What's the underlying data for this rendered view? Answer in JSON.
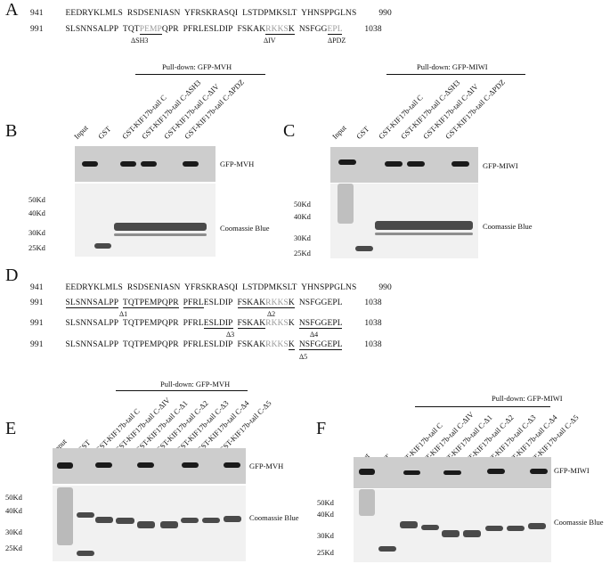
{
  "panels": {
    "A": {
      "label": "A",
      "row1": {
        "start": "941",
        "seq": [
          "EEDRYKLMLS",
          "RSDSENIASN",
          "YFRSKRASQI",
          "LSTDPMKSLT",
          "YHNSPPGLNS"
        ],
        "end": "990"
      },
      "row2": {
        "start": "991",
        "seq": [
          "SLSNNSALPP",
          "TQT",
          "PEMP",
          "QPR",
          "PFRLESLDIP",
          "FSKAK",
          "RKKS",
          "K",
          "NSFGG",
          "EPL"
        ],
        "end": "1038"
      },
      "marks": [
        "ΔSH3",
        "ΔIV",
        "ΔPDZ"
      ]
    },
    "B": {
      "label": "B",
      "pulldown": "Pull-down: GFP-MVH",
      "lanes": [
        "Input",
        "GST",
        "GST-KIF17b-tail C",
        "GST-KIF17b-tail C-ΔSH3",
        "GST-KIF17b-tail C-ΔIV",
        "GST-KIF17b-tail C-ΔPDZ"
      ],
      "wb_label": "GFP-MVH",
      "stain_label": "Coomassie Blue",
      "markers": [
        "50Kd",
        "40Kd",
        "30Kd",
        "25Kd"
      ]
    },
    "C": {
      "label": "C",
      "pulldown": "Pull-down: GFP-MIWI",
      "lanes": [
        "Input",
        "GST",
        "GST-KIF17b-tail C",
        "GST-KIF17b-tail C-ΔSH3",
        "GST-KIF17b-tail C-ΔIV",
        "GST-KIF17b-tail C-ΔPDZ"
      ],
      "wb_label": "GFP-MIWI",
      "stain_label": "Coomassie Blue",
      "markers": [
        "50Kd",
        "40Kd",
        "30Kd",
        "25Kd"
      ]
    },
    "D": {
      "label": "D",
      "row1": {
        "start": "941",
        "seq": [
          "EEDRYKLMLS",
          "RSDSENIASN",
          "YFRSKRASQI",
          "LSTDPMKSLT",
          "YHNSPPGLNS"
        ],
        "end": "990"
      },
      "rows": [
        {
          "start": "991",
          "seq": [
            "SLSNNSALPP",
            "TQTPEMPQPR",
            "PFRL",
            "ESLDIP",
            "FSKAK",
            "RKKS",
            "K",
            "NSFGGEPL"
          ],
          "end": "1038",
          "marks": [
            "Δ1",
            "Δ2"
          ]
        },
        {
          "start": "991",
          "seq": [
            "SLSNNSALPP",
            "TQTPEMPQPR",
            "PFRL",
            "ESLDIP",
            "FSKAK",
            "RKKS",
            "K",
            "NSFGGEPL"
          ],
          "end": "1038",
          "marks": [
            "Δ3",
            "Δ4"
          ]
        },
        {
          "start": "991",
          "seq": [
            "SLSNNSALPP",
            "TQTPEMPQPR",
            "PFRLESLDIP",
            "FSKAK",
            "RKKS",
            "K",
            "NSFGGEPL"
          ],
          "end": "1038",
          "marks": [
            "Δ5"
          ]
        }
      ]
    },
    "E": {
      "label": "E",
      "pulldown": "Pull-down: GFP-MVH",
      "lanes": [
        "Input",
        "GST",
        "GST-KIF17b-tail C",
        "GST-KIF17b-tail C-ΔIV",
        "GST-KIF17b-tail C-Δ1",
        "GST-KIF17b-tail C-Δ2",
        "GST-KIF17b-tail C-Δ3",
        "GST-KIF17b-tail C-Δ4",
        "GST-KIF17b-tail C-Δ5"
      ],
      "wb_label": "GFP-MVH",
      "stain_label": "Coomassie Blue",
      "markers": [
        "50Kd",
        "40Kd",
        "30Kd",
        "25Kd"
      ]
    },
    "F": {
      "label": "F",
      "pulldown": "Pull-down: GFP-MIWI",
      "lanes": [
        "Input",
        "GST",
        "GST-KIF17b-tail C",
        "GST-KIF17b-tail C-ΔIV",
        "GST-KIF17b-tail C-Δ1",
        "GST-KIF17b-tail C-Δ2",
        "GST-KIF17b-tail C-Δ3",
        "GST-KIF17b-tail C-Δ4",
        "GST-KIF17b-tail C-Δ5"
      ],
      "wb_label": "GFP-MIWI",
      "stain_label": "Coomassie Blue",
      "markers": [
        "50Kd",
        "40Kd",
        "30Kd",
        "25Kd"
      ]
    }
  }
}
